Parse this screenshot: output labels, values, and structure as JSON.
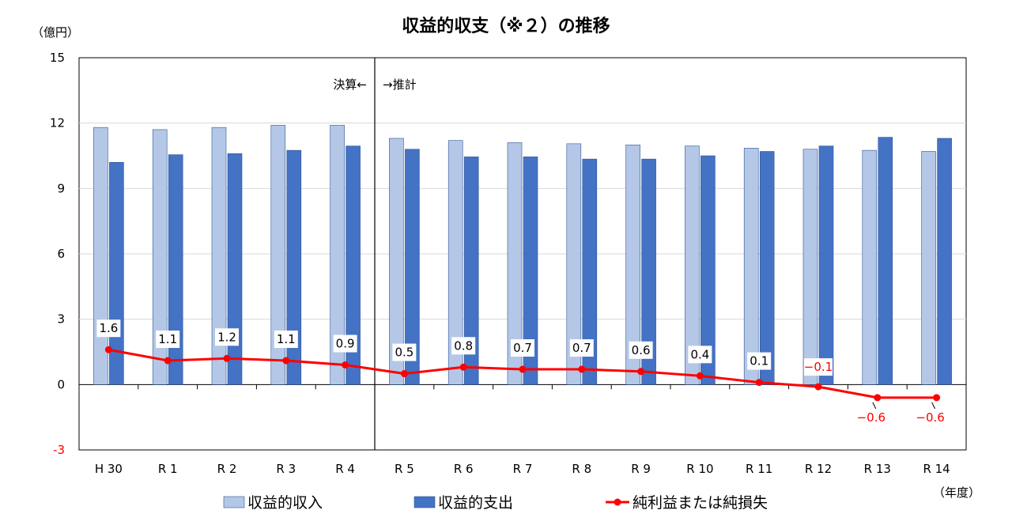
{
  "chart_data": {
    "type": "bar",
    "title": "収益的収支（※２）の推移",
    "ylabel": "（億円）",
    "xlabel": "（年度）",
    "ylim": [
      -3,
      15
    ],
    "yticks": [
      -3,
      0,
      3,
      6,
      9,
      12,
      15
    ],
    "negative_tick_color": "#ff0000",
    "grid": true,
    "categories": [
      "H 30",
      "R 1",
      "R 2",
      "R 3",
      "R 4",
      "R 5",
      "R 6",
      "R 7",
      "R 8",
      "R 9",
      "R 10",
      "R 11",
      "R 12",
      "R 13",
      "R 14"
    ],
    "series": [
      {
        "name": "収益的収入",
        "type": "bar",
        "color": "#b4c7e7",
        "values": [
          11.8,
          11.7,
          11.8,
          11.9,
          11.9,
          11.3,
          11.2,
          11.1,
          11.05,
          11.0,
          10.95,
          10.85,
          10.8,
          10.75,
          10.7
        ]
      },
      {
        "name": "収益的支出",
        "type": "bar",
        "color": "#4472c4",
        "values": [
          10.2,
          10.55,
          10.6,
          10.75,
          10.95,
          10.8,
          10.45,
          10.45,
          10.35,
          10.35,
          10.5,
          10.7,
          10.95,
          11.35,
          11.3
        ]
      },
      {
        "name": "純利益または純損失",
        "type": "line",
        "color": "#ff0000",
        "values": [
          1.6,
          1.1,
          1.2,
          1.1,
          0.9,
          0.5,
          0.8,
          0.7,
          0.7,
          0.6,
          0.4,
          0.1,
          -0.1,
          -0.6,
          -0.6
        ],
        "labels": [
          "1.6",
          "1.1",
          "1.2",
          "1.1",
          "0.9",
          "0.5",
          "0.8",
          "0.7",
          "0.7",
          "0.6",
          "0.4",
          "0.1",
          "−0.1",
          "−0.6",
          "−0.6"
        ]
      }
    ],
    "annotations": {
      "left": "決算←",
      "right": "→推計"
    },
    "legend": "bottom"
  }
}
